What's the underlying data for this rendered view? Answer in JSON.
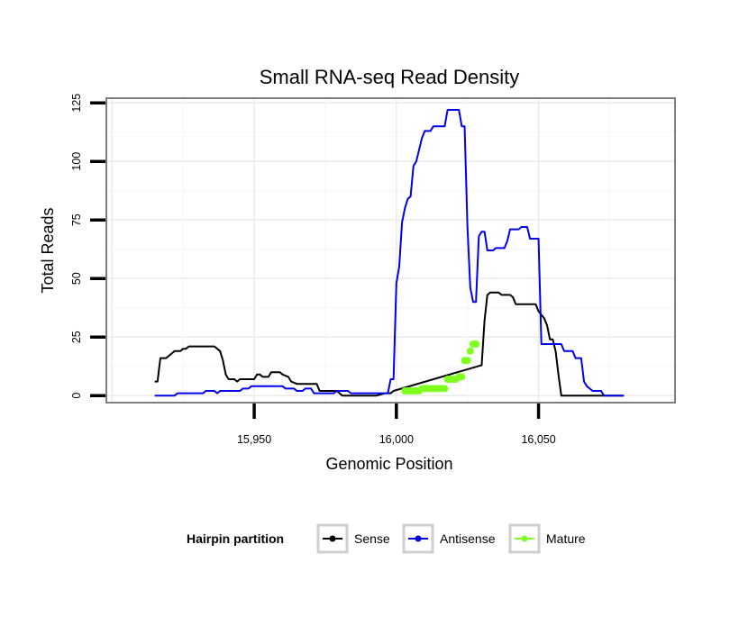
{
  "chart_data": {
    "type": "line",
    "title": "Small RNA-seq Read Density",
    "xlabel": "Genomic Position",
    "ylabel": "Total Reads",
    "xlim": [
      15898,
      16098
    ],
    "ylim": [
      -3,
      127
    ],
    "x_ticks": [
      {
        "value": 15950,
        "label": "15,950"
      },
      {
        "value": 16000,
        "label": "16,000"
      },
      {
        "value": 16050,
        "label": "16,050"
      }
    ],
    "y_ticks": [
      {
        "value": 0,
        "label": "0"
      },
      {
        "value": 25,
        "label": "25"
      },
      {
        "value": 50,
        "label": "50"
      },
      {
        "value": 75,
        "label": "75"
      },
      {
        "value": 100,
        "label": "100"
      },
      {
        "value": 125,
        "label": "125"
      }
    ],
    "grid": true,
    "legend": {
      "title": "Hairpin partition",
      "position": "bottom",
      "entries": [
        "Sense",
        "Antisense",
        "Mature"
      ]
    },
    "series": [
      {
        "name": "Sense",
        "color": "#000000",
        "marker": "line",
        "points": [
          [
            15915,
            6
          ],
          [
            15916,
            6
          ],
          [
            15917,
            16
          ],
          [
            15919,
            16
          ],
          [
            15920,
            17
          ],
          [
            15922,
            19
          ],
          [
            15924,
            19
          ],
          [
            15925,
            20
          ],
          [
            15926,
            20
          ],
          [
            15927,
            21
          ],
          [
            15935,
            21
          ],
          [
            15936,
            21
          ],
          [
            15937,
            20
          ],
          [
            15938,
            19
          ],
          [
            15939,
            15
          ],
          [
            15940,
            9
          ],
          [
            15941,
            7
          ],
          [
            15943,
            7
          ],
          [
            15944,
            6
          ],
          [
            15945,
            7
          ],
          [
            15948,
            7
          ],
          [
            15950,
            7
          ],
          [
            15951,
            9
          ],
          [
            15952,
            9
          ],
          [
            15953,
            8
          ],
          [
            15955,
            8
          ],
          [
            15956,
            10
          ],
          [
            15959,
            10
          ],
          [
            15960,
            9
          ],
          [
            15962,
            8
          ],
          [
            15963,
            6
          ],
          [
            15965,
            5
          ],
          [
            15972,
            5
          ],
          [
            15973,
            2
          ],
          [
            15979,
            2
          ],
          [
            15981,
            0
          ],
          [
            15993,
            0
          ],
          [
            15996,
            1
          ],
          [
            15998,
            1
          ],
          [
            15999,
            2
          ],
          [
            16030,
            13
          ],
          [
            16031,
            32
          ],
          [
            16032,
            43
          ],
          [
            16033,
            44
          ],
          [
            16036,
            44
          ],
          [
            16037,
            43
          ],
          [
            16040,
            43
          ],
          [
            16041,
            42
          ],
          [
            16042,
            39
          ],
          [
            16049,
            39
          ],
          [
            16050,
            36
          ],
          [
            16052,
            33
          ],
          [
            16053,
            30
          ],
          [
            16054,
            24
          ],
          [
            16055,
            24
          ],
          [
            16056,
            19
          ],
          [
            16057,
            9
          ],
          [
            16058,
            0
          ],
          [
            16080,
            0
          ]
        ]
      },
      {
        "name": "Antisense",
        "color": "#0000ee",
        "marker": "line",
        "points": [
          [
            15915,
            0
          ],
          [
            15922,
            0
          ],
          [
            15923,
            1
          ],
          [
            15932,
            1
          ],
          [
            15933,
            2
          ],
          [
            15936,
            2
          ],
          [
            15937,
            1
          ],
          [
            15938,
            2
          ],
          [
            15945,
            2
          ],
          [
            15946,
            3
          ],
          [
            15948,
            3
          ],
          [
            15949,
            4
          ],
          [
            15960,
            4
          ],
          [
            15961,
            3
          ],
          [
            15964,
            3
          ],
          [
            15965,
            2
          ],
          [
            15967,
            2
          ],
          [
            15968,
            3
          ],
          [
            15970,
            3
          ],
          [
            15971,
            1
          ],
          [
            15978,
            1
          ],
          [
            15979,
            2
          ],
          [
            15983,
            2
          ],
          [
            15984,
            1
          ],
          [
            15997,
            1
          ],
          [
            15998,
            7
          ],
          [
            15999,
            7
          ],
          [
            16000,
            48
          ],
          [
            16001,
            55
          ],
          [
            16002,
            74
          ],
          [
            16003,
            80
          ],
          [
            16004,
            84
          ],
          [
            16005,
            85
          ],
          [
            16006,
            98
          ],
          [
            16007,
            100
          ],
          [
            16008,
            105
          ],
          [
            16009,
            110
          ],
          [
            16010,
            113
          ],
          [
            16011,
            113
          ],
          [
            16012,
            113
          ],
          [
            16013,
            115
          ],
          [
            16017,
            115
          ],
          [
            16018,
            122
          ],
          [
            16022,
            122
          ],
          [
            16023,
            115
          ],
          [
            16024,
            115
          ],
          [
            16025,
            72
          ],
          [
            16026,
            46
          ],
          [
            16027,
            40
          ],
          [
            16028,
            40
          ],
          [
            16029,
            68
          ],
          [
            16030,
            70
          ],
          [
            16031,
            70
          ],
          [
            16032,
            62
          ],
          [
            16034,
            62
          ],
          [
            16035,
            63
          ],
          [
            16038,
            63
          ],
          [
            16039,
            66
          ],
          [
            16040,
            71
          ],
          [
            16043,
            71
          ],
          [
            16044,
            72
          ],
          [
            16046,
            72
          ],
          [
            16047,
            67
          ],
          [
            16050,
            67
          ],
          [
            16051,
            22
          ],
          [
            16058,
            22
          ],
          [
            16059,
            19
          ],
          [
            16062,
            19
          ],
          [
            16063,
            16
          ],
          [
            16065,
            16
          ],
          [
            16066,
            6
          ],
          [
            16067,
            4
          ],
          [
            16069,
            2
          ],
          [
            16072,
            2
          ],
          [
            16073,
            0
          ],
          [
            16080,
            0
          ]
        ]
      },
      {
        "name": "Mature",
        "color": "#7fff1f",
        "marker": "dots",
        "points": [
          [
            16003,
            2
          ],
          [
            16004,
            2
          ],
          [
            16005,
            2
          ],
          [
            16006,
            2
          ],
          [
            16007,
            2
          ],
          [
            16008,
            2
          ],
          [
            16009,
            3
          ],
          [
            16010,
            3
          ],
          [
            16011,
            3
          ],
          [
            16012,
            3
          ],
          [
            16013,
            3
          ],
          [
            16014,
            3
          ],
          [
            16015,
            3
          ],
          [
            16016,
            3
          ],
          [
            16017,
            3
          ],
          [
            16018,
            7
          ],
          [
            16019,
            7
          ],
          [
            16020,
            7
          ],
          [
            16021,
            7
          ],
          [
            16022,
            8
          ],
          [
            16023,
            8
          ],
          [
            16024,
            15
          ],
          [
            16025,
            15
          ],
          [
            16026,
            19
          ],
          [
            16027,
            22
          ],
          [
            16028,
            22
          ]
        ]
      }
    ]
  }
}
